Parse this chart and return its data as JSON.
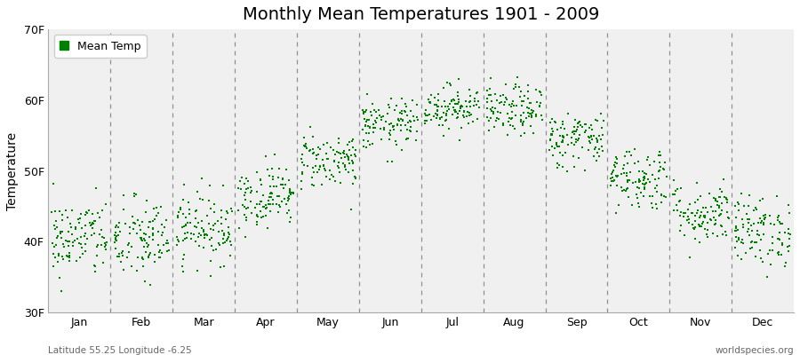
{
  "title": "Monthly Mean Temperatures 1901 - 2009",
  "ylabel": "Temperature",
  "xlabel": "",
  "ylim": [
    30,
    70
  ],
  "yticks": [
    30,
    40,
    50,
    60,
    70
  ],
  "ytick_labels": [
    "30F",
    "40F",
    "50F",
    "60F",
    "70F"
  ],
  "months": [
    "Jan",
    "Feb",
    "Mar",
    "Apr",
    "May",
    "Jun",
    "Jul",
    "Aug",
    "Sep",
    "Oct",
    "Nov",
    "Dec"
  ],
  "n_years": 109,
  "start_year": 1901,
  "end_year": 2009,
  "dot_color": "#008000",
  "dot_size": 3.5,
  "background_color": "#ffffff",
  "plot_bg_color": "#f0f0f0",
  "legend_label": "Mean Temp",
  "bottom_left_text": "Latitude 55.25 Longitude -6.25",
  "bottom_right_text": "worldspecies.org",
  "title_fontsize": 14,
  "label_fontsize": 10,
  "tick_fontsize": 9,
  "monthly_means_f": [
    40.5,
    40.2,
    42.0,
    46.5,
    51.5,
    56.5,
    59.0,
    58.5,
    54.5,
    49.0,
    44.0,
    41.5
  ],
  "monthly_stds_f": [
    2.8,
    3.0,
    2.5,
    2.2,
    2.0,
    1.8,
    1.6,
    1.8,
    2.0,
    2.3,
    2.2,
    2.5
  ],
  "seed": 42,
  "dashed_line_positions": [
    1,
    2,
    3,
    4,
    5,
    6,
    7,
    8,
    9,
    10,
    11
  ],
  "xlim": [
    0,
    12
  ]
}
